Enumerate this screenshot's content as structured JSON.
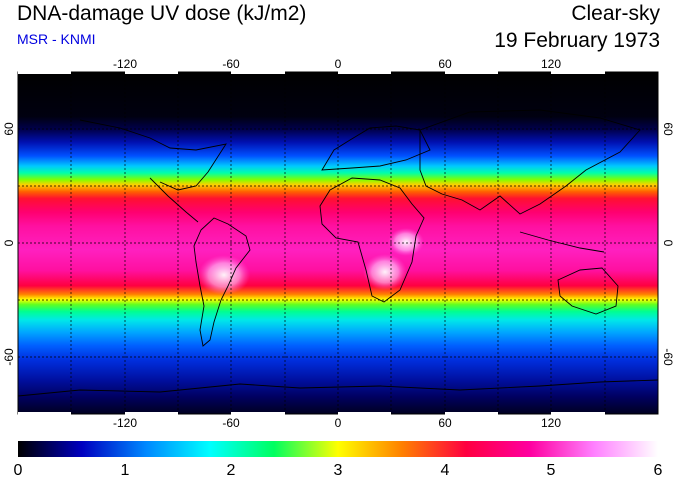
{
  "header": {
    "title": "DNA-damage UV dose (kJ/m2)",
    "subtitle": "MSR - KNMI",
    "sky_condition": "Clear-sky",
    "date": "19 February 1973"
  },
  "colors": {
    "subtitle": "#0000e0",
    "polar_night": "#000000",
    "coastline": "#000000"
  },
  "map": {
    "projection": "equirectangular",
    "lon_range": [
      -180,
      180
    ],
    "lat_range": [
      -90,
      90
    ],
    "lon_ticks": [
      "-120",
      "-60",
      "0",
      "60",
      "120"
    ],
    "lat_ticks": [
      "60",
      "0",
      "-60"
    ],
    "gridlines": "dashed every 30 degrees"
  },
  "colorbar": {
    "tick_labels": [
      "0",
      "1",
      "2",
      "3",
      "4",
      "5",
      "6"
    ],
    "stops": [
      "#000000",
      "#0000c0",
      "#0088ff",
      "#00ffff",
      "#00ff60",
      "#ffff00",
      "#ff8000",
      "#ff0040",
      "#ff00a0",
      "#ff80ff",
      "#ffffff"
    ]
  }
}
